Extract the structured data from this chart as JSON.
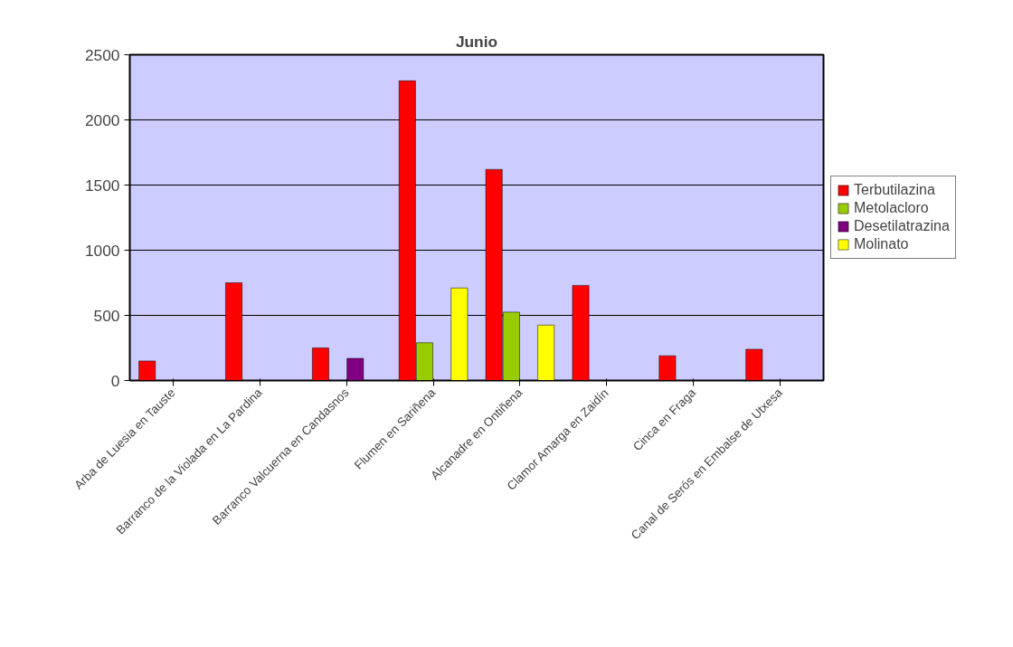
{
  "chart_data": {
    "type": "bar",
    "title": "Junio",
    "categories": [
      "Arba de Luesia en Tauste",
      "Barranco de la Violada en La Pardina",
      "Barranco Valcuerna en Candasnos",
      "Flumen en Sariñena",
      "Alcanadre en Ontiñena",
      "Clamor Amarga en Zaidín",
      "Cinca en Fraga",
      "Canal de Serós en Embalse de Utxesa"
    ],
    "series": [
      {
        "name": "Terbutilazina",
        "color": "#ff0000",
        "values": [
          150,
          750,
          250,
          2300,
          1620,
          730,
          190,
          240
        ]
      },
      {
        "name": "Metolacloro",
        "color": "#99cc00",
        "values": [
          null,
          null,
          null,
          290,
          525,
          null,
          null,
          null
        ]
      },
      {
        "name": "Desetilatrazina",
        "color": "#800080",
        "values": [
          null,
          null,
          170,
          null,
          null,
          null,
          null,
          null
        ]
      },
      {
        "name": "Molinato",
        "color": "#ffff00",
        "values": [
          null,
          null,
          null,
          710,
          425,
          null,
          null,
          null
        ]
      }
    ],
    "ylim": [
      0,
      2500
    ],
    "yticks": [
      0,
      500,
      1000,
      1500,
      2000,
      2500
    ],
    "grid": "y",
    "legend": "right"
  }
}
